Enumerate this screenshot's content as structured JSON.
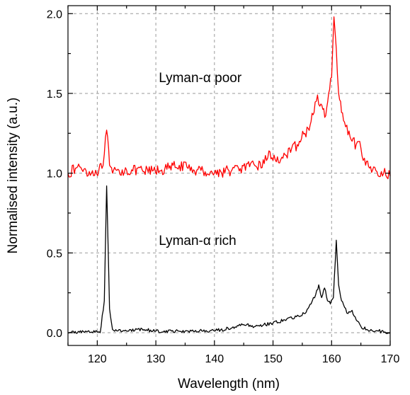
{
  "chart_data": {
    "type": "line",
    "title": "",
    "xlabel": "Wavelength (nm)",
    "ylabel": "Normalised intensity (a.u.)",
    "xlim": [
      115,
      170
    ],
    "ylim": [
      -0.08,
      2.05
    ],
    "x_ticks": [
      120,
      130,
      140,
      150,
      160,
      170
    ],
    "y_ticks": [
      0.0,
      0.5,
      1.0,
      1.5,
      2.0
    ],
    "x_tick_labels": [
      "120",
      "130",
      "140",
      "150",
      "160",
      "170"
    ],
    "y_tick_labels": [
      "0.0",
      "0.5",
      "1.0",
      "1.5",
      "2.0"
    ],
    "grid": true,
    "legend": "none",
    "annotations": [
      {
        "text": "Lyman-α poor",
        "x": 130.5,
        "y": 1.57
      },
      {
        "text": "Lyman-α rich",
        "x": 130.5,
        "y": 0.55
      }
    ],
    "series": [
      {
        "color": "#ff0000",
        "x": [
          115,
          117,
          119,
          120.8,
          121.2,
          121.6,
          122.1,
          122.6,
          125,
          128,
          131,
          134,
          135.5,
          137,
          140,
          143,
          146,
          148.5,
          149.3,
          150,
          151.5,
          153,
          154.5,
          156,
          157,
          157.6,
          158,
          158.5,
          159,
          159.5,
          160,
          160.4,
          160.8,
          161.2,
          161.7,
          162.2,
          162.8,
          163.5,
          164.2,
          165,
          165.4,
          165.8,
          167,
          168.5,
          170
        ],
        "y": [
          1.0,
          1.04,
          1.0,
          1.03,
          1.12,
          1.27,
          1.05,
          1.0,
          1.02,
          1.01,
          1.02,
          1.05,
          1.03,
          1.02,
          1.0,
          1.02,
          1.04,
          1.06,
          1.14,
          1.08,
          1.1,
          1.13,
          1.2,
          1.28,
          1.38,
          1.49,
          1.42,
          1.4,
          1.36,
          1.5,
          1.6,
          1.98,
          1.78,
          1.5,
          1.38,
          1.32,
          1.24,
          1.2,
          1.18,
          1.16,
          1.08,
          1.05,
          1.02,
          1.01,
          0.98
        ]
      },
      {
        "color": "#000000",
        "x": [
          115,
          118,
          120.5,
          121.2,
          121.6,
          122.1,
          122.6,
          125,
          128,
          130,
          135,
          140,
          143,
          145,
          147,
          150,
          152,
          154,
          155.5,
          156.5,
          157.3,
          157.8,
          158.3,
          158.8,
          159.3,
          159.8,
          160.3,
          160.8,
          161.2,
          161.7,
          162.2,
          162.8,
          163.5,
          164.2,
          165,
          166,
          168,
          170
        ],
        "y": [
          0.0,
          0.01,
          0.0,
          0.2,
          0.92,
          0.15,
          0.02,
          0.01,
          0.02,
          0.01,
          0.01,
          0.01,
          0.03,
          0.05,
          0.04,
          0.06,
          0.08,
          0.1,
          0.12,
          0.18,
          0.24,
          0.3,
          0.22,
          0.28,
          0.2,
          0.18,
          0.22,
          0.58,
          0.3,
          0.2,
          0.16,
          0.12,
          0.14,
          0.08,
          0.04,
          0.02,
          0.01,
          0.0
        ]
      }
    ]
  }
}
